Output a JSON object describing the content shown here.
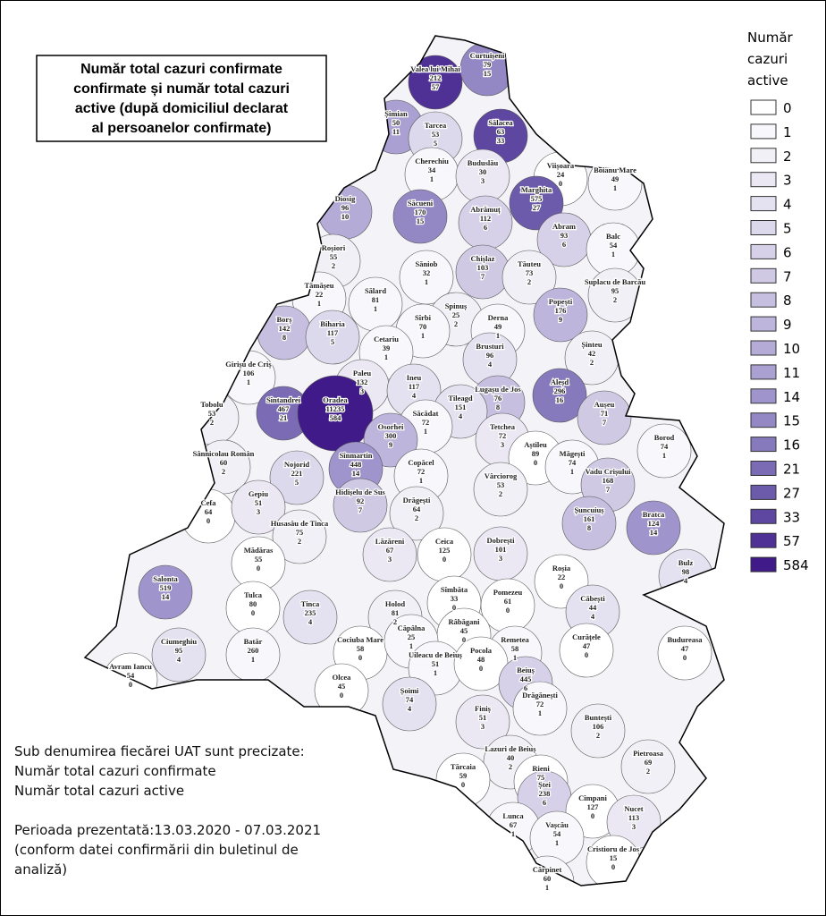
{
  "title_lines": [
    "Număr total cazuri confirmate",
    "confirmate și număr total cazuri",
    "active (după domiciliul declarat",
    "al persoanelor confirmate)"
  ],
  "legend": {
    "title_lines": [
      "Număr",
      "cazuri",
      "active"
    ],
    "entries": [
      {
        "value": 0,
        "color": "#ffffff"
      },
      {
        "value": 1,
        "color": "#f8f7fb"
      },
      {
        "value": 2,
        "color": "#f2f0f7"
      },
      {
        "value": 3,
        "color": "#ebe8f4"
      },
      {
        "value": 4,
        "color": "#e4e1f0"
      },
      {
        "value": 5,
        "color": "#ddd9ec"
      },
      {
        "value": 6,
        "color": "#d6d1e8"
      },
      {
        "value": 7,
        "color": "#cfc9e4"
      },
      {
        "value": 8,
        "color": "#c6bfe0"
      },
      {
        "value": 9,
        "color": "#bdb5dc"
      },
      {
        "value": 10,
        "color": "#b4abd7"
      },
      {
        "value": 11,
        "color": "#aaa0d1"
      },
      {
        "value": 14,
        "color": "#9f94cb"
      },
      {
        "value": 15,
        "color": "#9387c4"
      },
      {
        "value": 16,
        "color": "#867abd"
      },
      {
        "value": 21,
        "color": "#7a6bb4"
      },
      {
        "value": 27,
        "color": "#6c5aab"
      },
      {
        "value": 33,
        "color": "#5e47a1"
      },
      {
        "value": 57,
        "color": "#4f3195"
      },
      {
        "value": 584,
        "color": "#3f1a88"
      }
    ]
  },
  "notes": [
    "Sub denumirea fiecărei UAT sunt precizate:",
    "Număr total cazuri confirmate",
    "Număr total cazuri active",
    "",
    "Perioada prezentată:13.03.2020 - 07.03.2021",
    "(conform datei confirmării din buletinul de",
    "analiză)"
  ],
  "uats": [
    {
      "name": "Valea lui Mihai",
      "confirmed": 212,
      "active": 57
    },
    {
      "name": "Curtuișeni",
      "confirmed": 79,
      "active": 15
    },
    {
      "name": "Șimian",
      "confirmed": 50,
      "active": 11
    },
    {
      "name": "Tarcea",
      "confirmed": 53,
      "active": 5
    },
    {
      "name": "Sălacea",
      "confirmed": 63,
      "active": 33
    },
    {
      "name": "Cherechiu",
      "confirmed": 34,
      "active": 1
    },
    {
      "name": "Buduslău",
      "confirmed": 30,
      "active": 3
    },
    {
      "name": "Viișoara",
      "confirmed": 24,
      "active": 0
    },
    {
      "name": "Boianu Mare",
      "confirmed": 49,
      "active": 1
    },
    {
      "name": "Diosig",
      "confirmed": 96,
      "active": 10
    },
    {
      "name": "Săcueni",
      "confirmed": 170,
      "active": 15
    },
    {
      "name": "Abrămuț",
      "confirmed": 112,
      "active": 6
    },
    {
      "name": "Marghita",
      "confirmed": 575,
      "active": 27
    },
    {
      "name": "Abram",
      "confirmed": 93,
      "active": 6
    },
    {
      "name": "Balc",
      "confirmed": 54,
      "active": 1
    },
    {
      "name": "Roșiori",
      "confirmed": 55,
      "active": 2
    },
    {
      "name": "Săniob",
      "confirmed": 32,
      "active": 1
    },
    {
      "name": "Chișlaz",
      "confirmed": 103,
      "active": 7
    },
    {
      "name": "Tăuteu",
      "confirmed": 73,
      "active": 2
    },
    {
      "name": "Suplacu de Barcău",
      "confirmed": 95,
      "active": 2
    },
    {
      "name": "Tămășeu",
      "confirmed": 22,
      "active": 1
    },
    {
      "name": "Sălard",
      "confirmed": 81,
      "active": 1
    },
    {
      "name": "Spinuș",
      "confirmed": 25,
      "active": 2
    },
    {
      "name": "Popești",
      "confirmed": 176,
      "active": 9
    },
    {
      "name": "Borș",
      "confirmed": 142,
      "active": 8
    },
    {
      "name": "Biharia",
      "confirmed": 117,
      "active": 5
    },
    {
      "name": "Sîrbi",
      "confirmed": 70,
      "active": 1
    },
    {
      "name": "Derna",
      "confirmed": 49,
      "active": 1
    },
    {
      "name": "Cetariu",
      "confirmed": 39,
      "active": 1
    },
    {
      "name": "Brusturi",
      "confirmed": 96,
      "active": 4
    },
    {
      "name": "Șinteu",
      "confirmed": 42,
      "active": 2
    },
    {
      "name": "Girișu de Criș",
      "confirmed": 106,
      "active": 1
    },
    {
      "name": "Paleu",
      "confirmed": 132,
      "active": 3
    },
    {
      "name": "Ineu",
      "confirmed": 117,
      "active": 4
    },
    {
      "name": "Aleșd",
      "confirmed": 296,
      "active": 16
    },
    {
      "name": "Lugașu de Jos",
      "confirmed": 76,
      "active": 8
    },
    {
      "name": "Tileagd",
      "confirmed": 151,
      "active": 4
    },
    {
      "name": "Sîntandrei",
      "confirmed": 467,
      "active": 21
    },
    {
      "name": "Oradea",
      "confirmed": 11235,
      "active": 584
    },
    {
      "name": "Săcădat",
      "confirmed": 72,
      "active": 1
    },
    {
      "name": "Aușeu",
      "confirmed": 71,
      "active": 7
    },
    {
      "name": "Tobolu",
      "confirmed": 53,
      "active": 2
    },
    {
      "name": "Osorhei",
      "confirmed": 300,
      "active": 9
    },
    {
      "name": "Tetchea",
      "confirmed": 72,
      "active": 3
    },
    {
      "name": "Borod",
      "confirmed": 74,
      "active": 1
    },
    {
      "name": "Aștileu",
      "confirmed": 89,
      "active": 0
    },
    {
      "name": "Măgești",
      "confirmed": 74,
      "active": 1
    },
    {
      "name": "Sânnicolau Român",
      "confirmed": 60,
      "active": 2
    },
    {
      "name": "Nojorid",
      "confirmed": 221,
      "active": 5
    },
    {
      "name": "Sînmartin",
      "confirmed": 448,
      "active": 14
    },
    {
      "name": "Copăcel",
      "confirmed": 72,
      "active": 1
    },
    {
      "name": "Vadu Crișului",
      "confirmed": 168,
      "active": 7
    },
    {
      "name": "Vârciorog",
      "confirmed": 53,
      "active": 2
    },
    {
      "name": "Hidișelu de Sus",
      "confirmed": 92,
      "active": 7
    },
    {
      "name": "Cefa",
      "confirmed": 64,
      "active": 0
    },
    {
      "name": "Gepiu",
      "confirmed": 51,
      "active": 3
    },
    {
      "name": "Drăgești",
      "confirmed": 64,
      "active": 2
    },
    {
      "name": "Șuncuiuș",
      "confirmed": 161,
      "active": 8
    },
    {
      "name": "Bratca",
      "confirmed": 124,
      "active": 14
    },
    {
      "name": "Husasău de Tinca",
      "confirmed": 75,
      "active": 2
    },
    {
      "name": "Lăzăreni",
      "confirmed": 67,
      "active": 3
    },
    {
      "name": "Ceica",
      "confirmed": 125,
      "active": 0
    },
    {
      "name": "Dobrești",
      "confirmed": 101,
      "active": 3
    },
    {
      "name": "Mădăras",
      "confirmed": 55,
      "active": 0
    },
    {
      "name": "Bulz",
      "confirmed": 98,
      "active": 4
    },
    {
      "name": "Roșia",
      "confirmed": 22,
      "active": 0
    },
    {
      "name": "Salonta",
      "confirmed": 519,
      "active": 14
    },
    {
      "name": "Tulca",
      "confirmed": 80,
      "active": 0
    },
    {
      "name": "Tinca",
      "confirmed": 235,
      "active": 4
    },
    {
      "name": "Holod",
      "confirmed": 81,
      "active": 2
    },
    {
      "name": "Sîmbăta",
      "confirmed": 33,
      "active": 0
    },
    {
      "name": "Pomezeu",
      "confirmed": 61,
      "active": 0
    },
    {
      "name": "Căbești",
      "confirmed": 44,
      "active": 4
    },
    {
      "name": "Râbăgani",
      "confirmed": 45,
      "active": 0
    },
    {
      "name": "Ciumeghiu",
      "confirmed": 95,
      "active": 4
    },
    {
      "name": "Batăr",
      "confirmed": 260,
      "active": 1
    },
    {
      "name": "Cociuba Mare",
      "confirmed": 58,
      "active": 0
    },
    {
      "name": "Căpâlna",
      "confirmed": 25,
      "active": 1
    },
    {
      "name": "Budureasa",
      "confirmed": 47,
      "active": 0
    },
    {
      "name": "Remetea",
      "confirmed": 58,
      "active": 1
    },
    {
      "name": "Curățele",
      "confirmed": 47,
      "active": 0
    },
    {
      "name": "Uileacu de Beiuș",
      "confirmed": 51,
      "active": 1
    },
    {
      "name": "Pocola",
      "confirmed": 48,
      "active": 0
    },
    {
      "name": "Avram Iancu",
      "confirmed": 54,
      "active": 0
    },
    {
      "name": "Beiuș",
      "confirmed": 445,
      "active": 6
    },
    {
      "name": "Olcea",
      "confirmed": 45,
      "active": 0
    },
    {
      "name": "Șoimi",
      "confirmed": 74,
      "active": 4
    },
    {
      "name": "Drăgănești",
      "confirmed": 72,
      "active": 1
    },
    {
      "name": "Finiș",
      "confirmed": 51,
      "active": 3
    },
    {
      "name": "Buntești",
      "confirmed": 106,
      "active": 2
    },
    {
      "name": "Lazuri de Beiuș",
      "confirmed": 40,
      "active": 2
    },
    {
      "name": "Pietroasa",
      "confirmed": 69,
      "active": 2
    },
    {
      "name": "Tărcaia",
      "confirmed": 59,
      "active": 0
    },
    {
      "name": "Rieni",
      "confirmed": 75,
      "active": 0
    },
    {
      "name": "Ștei",
      "confirmed": 238,
      "active": 6
    },
    {
      "name": "Cîmpani",
      "confirmed": 127,
      "active": 0
    },
    {
      "name": "Nucet",
      "confirmed": 113,
      "active": 3
    },
    {
      "name": "Lunca",
      "confirmed": 67,
      "active": 1
    },
    {
      "name": "Vașcău",
      "confirmed": 54,
      "active": 1
    },
    {
      "name": "Cristioru de Jos",
      "confirmed": 15,
      "active": 0
    },
    {
      "name": "Cărpinet",
      "confirmed": 60,
      "active": 1
    }
  ]
}
